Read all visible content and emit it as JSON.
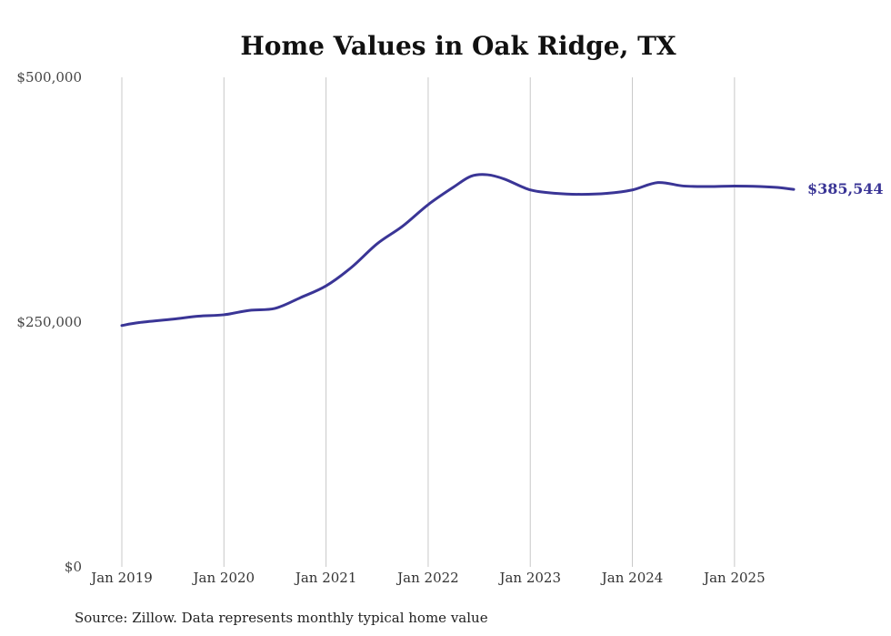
{
  "chart_data": {
    "type": "line",
    "title": "Home Values in Oak Ridge, TX",
    "xlabel": "",
    "ylabel": "",
    "ylim": [
      0,
      500000
    ],
    "y_ticks": [
      {
        "value": 0,
        "label": "$0"
      },
      {
        "value": 250000,
        "label": "$250,000"
      },
      {
        "value": 500000,
        "label": "$500,000"
      }
    ],
    "x_ticks": [
      {
        "value": 2019,
        "label": "Jan 2019"
      },
      {
        "value": 2020,
        "label": "Jan 2020"
      },
      {
        "value": 2021,
        "label": "Jan 2021"
      },
      {
        "value": 2022,
        "label": "Jan 2022"
      },
      {
        "value": 2023,
        "label": "Jan 2023"
      },
      {
        "value": 2024,
        "label": "Jan 2024"
      },
      {
        "value": 2025,
        "label": "Jan 2025"
      }
    ],
    "xlim": [
      2019,
      2025.58
    ],
    "vertical_grid": true,
    "series": [
      {
        "name": "Typical home value",
        "color": "#3a3596",
        "points": [
          [
            2019.0,
            246500
          ],
          [
            2019.17,
            249500
          ],
          [
            2019.5,
            253000
          ],
          [
            2019.75,
            256000
          ],
          [
            2020.0,
            257500
          ],
          [
            2020.25,
            262000
          ],
          [
            2020.5,
            264000
          ],
          [
            2020.75,
            275000
          ],
          [
            2021.0,
            287000
          ],
          [
            2021.25,
            306000
          ],
          [
            2021.5,
            330000
          ],
          [
            2021.75,
            348000
          ],
          [
            2022.0,
            370000
          ],
          [
            2022.25,
            388000
          ],
          [
            2022.42,
            399000
          ],
          [
            2022.58,
            400500
          ],
          [
            2022.75,
            396000
          ],
          [
            2023.0,
            385000
          ],
          [
            2023.25,
            381500
          ],
          [
            2023.5,
            380500
          ],
          [
            2023.75,
            381500
          ],
          [
            2024.0,
            385000
          ],
          [
            2024.25,
            392500
          ],
          [
            2024.5,
            389000
          ],
          [
            2024.75,
            388500
          ],
          [
            2025.0,
            389000
          ],
          [
            2025.25,
            388500
          ],
          [
            2025.42,
            387500
          ],
          [
            2025.58,
            385544
          ]
        ]
      }
    ],
    "end_label": "$385,544"
  },
  "source_note": "Source: Zillow. Data represents monthly typical home value"
}
